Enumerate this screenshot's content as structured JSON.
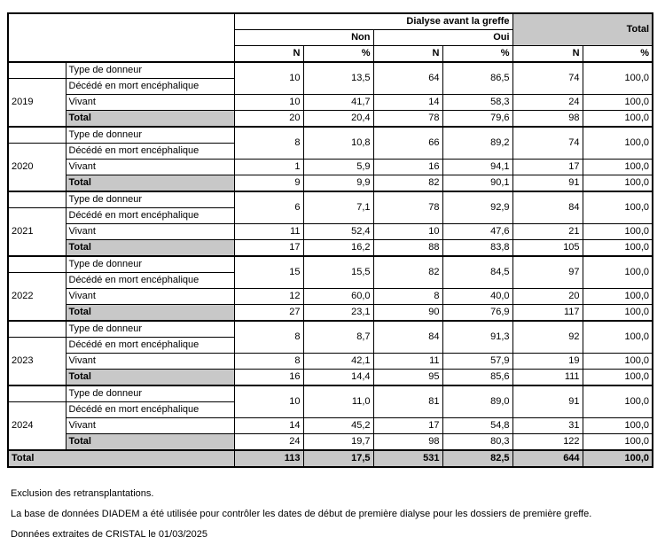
{
  "table": {
    "header": {
      "group_title": "Dialyse avant la greffe",
      "col_groups": [
        "Non",
        "Oui"
      ],
      "total_label": "Total",
      "n_label": "N",
      "pct_label": "%"
    },
    "row_labels": {
      "type_header": "Type de donneur",
      "deceased": "Décédé en mort encéphalique",
      "living": "Vivant",
      "total": "Total"
    },
    "groups": [
      {
        "year": "2019",
        "deceased": [
          "10",
          "13,5",
          "64",
          "86,5",
          "74",
          "100,0"
        ],
        "living": [
          "10",
          "41,7",
          "14",
          "58,3",
          "24",
          "100,0"
        ],
        "total": [
          "20",
          "20,4",
          "78",
          "79,6",
          "98",
          "100,0"
        ]
      },
      {
        "year": "2020",
        "deceased": [
          "8",
          "10,8",
          "66",
          "89,2",
          "74",
          "100,0"
        ],
        "living": [
          "1",
          "5,9",
          "16",
          "94,1",
          "17",
          "100,0"
        ],
        "total": [
          "9",
          "9,9",
          "82",
          "90,1",
          "91",
          "100,0"
        ]
      },
      {
        "year": "2021",
        "deceased": [
          "6",
          "7,1",
          "78",
          "92,9",
          "84",
          "100,0"
        ],
        "living": [
          "11",
          "52,4",
          "10",
          "47,6",
          "21",
          "100,0"
        ],
        "total": [
          "17",
          "16,2",
          "88",
          "83,8",
          "105",
          "100,0"
        ]
      },
      {
        "year": "2022",
        "deceased": [
          "15",
          "15,5",
          "82",
          "84,5",
          "97",
          "100,0"
        ],
        "living": [
          "12",
          "60,0",
          "8",
          "40,0",
          "20",
          "100,0"
        ],
        "total": [
          "27",
          "23,1",
          "90",
          "76,9",
          "117",
          "100,0"
        ]
      },
      {
        "year": "2023",
        "deceased": [
          "8",
          "8,7",
          "84",
          "91,3",
          "92",
          "100,0"
        ],
        "living": [
          "8",
          "42,1",
          "11",
          "57,9",
          "19",
          "100,0"
        ],
        "total": [
          "16",
          "14,4",
          "95",
          "85,6",
          "111",
          "100,0"
        ]
      },
      {
        "year": "2024",
        "deceased": [
          "10",
          "11,0",
          "81",
          "89,0",
          "91",
          "100,0"
        ],
        "living": [
          "14",
          "45,2",
          "17",
          "54,8",
          "31",
          "100,0"
        ],
        "total": [
          "24",
          "19,7",
          "98",
          "80,3",
          "122",
          "100,0"
        ]
      }
    ],
    "grand_total": {
      "label": "Total",
      "values": [
        "113",
        "17,5",
        "531",
        "82,5",
        "644",
        "100,0"
      ]
    }
  },
  "footnotes": [
    "Exclusion des retransplantations.",
    "La base de données DIADEM a été utilisée pour contrôler les dates de début de première dialyse pour les dossiers de première greffe.",
    "Données extraites de CRISTAL le 01/03/2025"
  ],
  "colors": {
    "table_gray": "#c8c8c8",
    "border": "#000000",
    "text": "#000000",
    "background": "#ffffff"
  }
}
